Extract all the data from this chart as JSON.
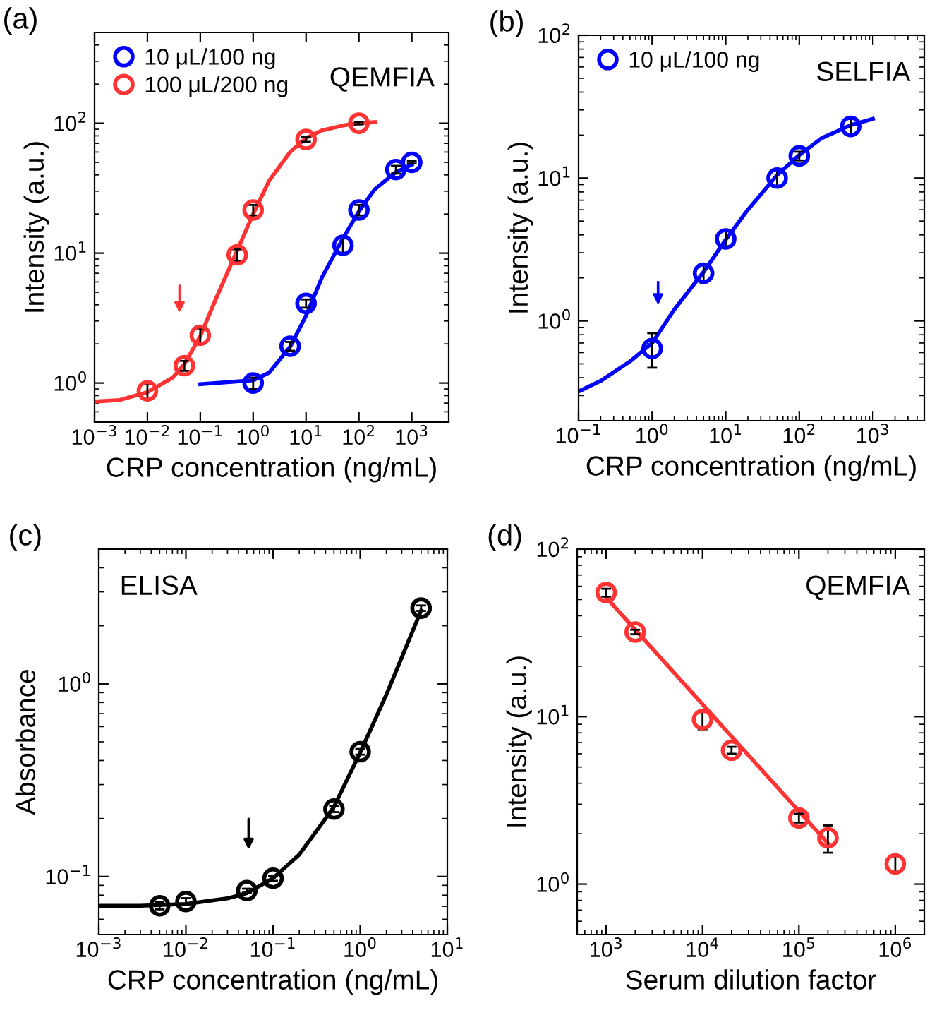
{
  "chart_data": [
    {
      "type": "scatter",
      "title": "(a)",
      "xlabel": "CRP concentration (ng/mL)",
      "ylabel": "Intensity (a.u.)",
      "annotations": [
        "QEMFIA"
      ],
      "log": "xy",
      "legend": "top left",
      "grid": false,
      "xlim": [
        0.001,
        5000
      ],
      "ylim": [
        0.5,
        500
      ],
      "xticks": [
        {
          "value": 0.001,
          "label": "10$^{−3}$"
        },
        {
          "value": 0.01,
          "label": "10$^{−2}$"
        },
        {
          "value": 0.1,
          "label": "10$^{−1}$"
        },
        {
          "value": 1,
          "label": "10$^{0}$"
        },
        {
          "value": 10,
          "label": "10$^{1}$"
        },
        {
          "value": 100,
          "label": "10$^{2}$"
        },
        {
          "value": 1000,
          "label": "10$^{3}$"
        }
      ],
      "yticks": [
        {
          "value": 1,
          "label": "10$^{0}$"
        },
        {
          "value": 10,
          "label": "10$^{1}$"
        },
        {
          "value": 100,
          "label": "10$^{2}$"
        }
      ],
      "series": [
        {
          "name": "10 μL/100 ng",
          "marker": "circle",
          "color": "#0000ff",
          "x": [
            1,
            5,
            10,
            50,
            100,
            500,
            1000
          ],
          "values": [
            1.0,
            1.92,
            4.1,
            11.5,
            21.5,
            44,
            50
          ],
          "errors": [
            0.1,
            0.15,
            0.3,
            1.5,
            2,
            3,
            1
          ]
        },
        {
          "name": "100 μL/200 ng",
          "marker": "circle",
          "color": "#ff3333",
          "x": [
            0.01,
            0.05,
            0.1,
            0.5,
            1,
            10,
            100
          ],
          "values": [
            0.87,
            1.36,
            2.33,
            9.7,
            21.5,
            75,
            100
          ],
          "errors": [
            0.12,
            0.12,
            0.3,
            1,
            2,
            3,
            2
          ]
        },
        {
          "type": "line",
          "marker": "none",
          "color": "#0000ff",
          "x": [
            0.1,
            1,
            2,
            5,
            10,
            20,
            50,
            100,
            200,
            500,
            1000
          ],
          "values": [
            0.98,
            1.05,
            1.2,
            1.9,
            3.3,
            6.5,
            13,
            21,
            31,
            42,
            48
          ]
        },
        {
          "type": "line",
          "marker": "none",
          "color": "#ff3333",
          "x": [
            0.001,
            0.003,
            0.01,
            0.03,
            0.05,
            0.1,
            0.2,
            0.5,
            1,
            2,
            5,
            10,
            20,
            50,
            100,
            200
          ],
          "values": [
            0.72,
            0.74,
            0.85,
            1.1,
            1.4,
            2.3,
            4.5,
            10.5,
            20,
            36,
            60,
            77,
            88,
            96,
            100,
            102
          ]
        }
      ]
    },
    {
      "type": "scatter",
      "title": "(b)",
      "xlabel": "CRP concentration (ng/mL)",
      "ylabel": "Intensity (a.u.)",
      "annotations": [
        "SELFIA"
      ],
      "log": "xy",
      "legend": "top left",
      "grid": false,
      "xlim": [
        0.1,
        5000
      ],
      "ylim": [
        0.2,
        100
      ],
      "xticks": [
        {
          "value": 0.1,
          "label": "10$^{−1}$"
        },
        {
          "value": 1,
          "label": "10$^{0}$"
        },
        {
          "value": 10,
          "label": "10$^{1}$"
        },
        {
          "value": 100,
          "label": "10$^{2}$"
        },
        {
          "value": 1000,
          "label": "10$^{3}$"
        }
      ],
      "yticks": [
        {
          "value": 1,
          "label": "10$^{0}$"
        },
        {
          "value": 10,
          "label": "10$^{1}$"
        },
        {
          "value": 100,
          "label": "10$^{2}$"
        }
      ],
      "series": [
        {
          "name": "10 μL/100 ng",
          "marker": "circle",
          "color": "#0000ff",
          "x": [
            1,
            5,
            10,
            50,
            100,
            500
          ],
          "values": [
            0.64,
            2.16,
            3.75,
            10,
            14.3,
            23
          ],
          "errors": [
            [
              0.47,
              0.82
            ],
            0.3,
            0.5,
            1.3,
            1,
            3
          ]
        },
        {
          "type": "line",
          "marker": "none",
          "color": "#0000ff",
          "x": [
            0.1,
            0.2,
            0.5,
            1,
            2,
            5,
            10,
            20,
            50,
            100,
            200,
            500,
            1000
          ],
          "values": [
            0.32,
            0.38,
            0.52,
            0.7,
            1.2,
            2.2,
            3.7,
            6,
            10.5,
            14.5,
            19,
            23.5,
            26
          ]
        }
      ]
    },
    {
      "type": "scatter",
      "title": "(c)",
      "xlabel": "CRP concentration (ng/mL)",
      "ylabel": "Absorbance",
      "annotations": [
        "ELISA"
      ],
      "log": "xy",
      "grid": false,
      "xlim": [
        0.001,
        10
      ],
      "ylim": [
        0.05,
        5
      ],
      "xticks": [
        {
          "value": 0.001,
          "label": "10$^{−3}$"
        },
        {
          "value": 0.01,
          "label": "10$^{−2}$"
        },
        {
          "value": 0.1,
          "label": "10$^{−1}$"
        },
        {
          "value": 1,
          "label": "10$^{0}$"
        },
        {
          "value": 10,
          "label": "10$^{1}$"
        }
      ],
      "yticks": [
        {
          "value": 0.1,
          "label": "10$^{−1}$"
        },
        {
          "value": 1,
          "label": "10$^{0}$"
        }
      ],
      "series": [
        {
          "marker": "circle",
          "color": "#000000",
          "x": [
            0.005,
            0.01,
            0.05,
            0.1,
            0.5,
            1,
            5
          ],
          "values": [
            0.0705,
            0.0742,
            0.0845,
            0.098,
            0.224,
            0.444,
            2.47
          ],
          "errors": [
            0.003,
            0.003,
            0.002,
            0.003,
            0.008,
            0.015,
            0.08
          ]
        },
        {
          "type": "line",
          "marker": "none",
          "color": "#000000",
          "x": [
            0.001,
            0.003,
            0.01,
            0.03,
            0.05,
            0.1,
            0.2,
            0.5,
            1,
            2,
            5
          ],
          "values": [
            0.0705,
            0.0705,
            0.072,
            0.077,
            0.082,
            0.098,
            0.13,
            0.23,
            0.44,
            0.88,
            2.4
          ]
        }
      ]
    },
    {
      "type": "scatter",
      "title": "(d)",
      "xlabel": "Serum dilution factor",
      "ylabel": "Intensity (a.u.)",
      "annotations": [
        "QEMFIA"
      ],
      "log": "xy",
      "grid": false,
      "xlim": [
        500,
        2000000
      ],
      "ylim": [
        0.5,
        100
      ],
      "xticks": [
        {
          "value": 1000,
          "label": "10$^{3}$"
        },
        {
          "value": 10000,
          "label": "10$^{4}$"
        },
        {
          "value": 100000,
          "label": "10$^{5}$"
        },
        {
          "value": 1000000,
          "label": "10$^{6}$"
        }
      ],
      "yticks": [
        {
          "value": 1,
          "label": "10$^{0}$"
        },
        {
          "value": 10,
          "label": "10$^{1}$"
        },
        {
          "value": 100,
          "label": "10$^{2}$"
        }
      ],
      "series": [
        {
          "marker": "circle",
          "color": "#ff3333",
          "x": [
            1000,
            2000,
            10000,
            20000,
            100000,
            200000,
            1000000
          ],
          "values": [
            55,
            32,
            9.6,
            6.3,
            2.48,
            1.89,
            1.32
          ],
          "errors": [
            3,
            1,
            1.2,
            0.3,
            0.15,
            0.35,
            0.15
          ]
        },
        {
          "type": "line",
          "marker": "none",
          "color": "#ff3333",
          "x": [
            1000,
            200000
          ],
          "values": [
            51.5,
            1.75
          ]
        }
      ]
    }
  ]
}
